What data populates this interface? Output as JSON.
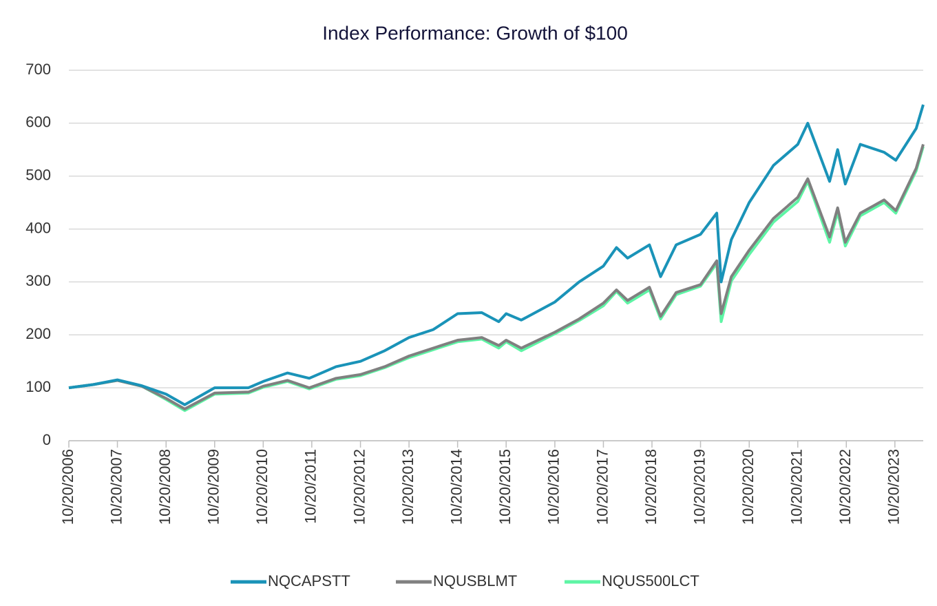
{
  "chart_data": {
    "type": "line",
    "title": "Index Performance: Growth of $100",
    "x": [
      "2006-10-20",
      "2007-04-20",
      "2007-10-20",
      "2008-04-20",
      "2008-10-20",
      "2009-03-09",
      "2009-10-20",
      "2010-07-01",
      "2010-10-20",
      "2011-04-20",
      "2011-10-01",
      "2012-04-20",
      "2012-10-20",
      "2013-04-20",
      "2013-10-20",
      "2014-04-20",
      "2014-10-20",
      "2015-04-20",
      "2015-08-25",
      "2015-10-20",
      "2016-02-11",
      "2016-10-20",
      "2017-04-20",
      "2017-10-20",
      "2018-01-26",
      "2018-04-20",
      "2018-10-01",
      "2018-12-24",
      "2019-04-20",
      "2019-10-20",
      "2020-02-19",
      "2020-03-23",
      "2020-06-08",
      "2020-10-20",
      "2021-04-20",
      "2021-10-20",
      "2022-01-03",
      "2022-06-16",
      "2022-08-16",
      "2022-10-12",
      "2023-02-02",
      "2023-07-31",
      "2023-10-27",
      "2024-03-28",
      "2024-05-20"
    ],
    "series": [
      {
        "name": "NQCAPSTT",
        "color": "#1a93b8",
        "values": [
          100,
          106,
          115,
          104,
          88,
          68,
          100,
          100,
          112,
          128,
          118,
          140,
          150,
          170,
          195,
          210,
          240,
          242,
          225,
          240,
          228,
          262,
          300,
          330,
          365,
          345,
          370,
          310,
          370,
          390,
          430,
          300,
          380,
          450,
          520,
          560,
          600,
          490,
          550,
          485,
          560,
          545,
          530,
          590,
          635
        ]
      },
      {
        "name": "NQUSBLMT",
        "color": "#808080",
        "values": [
          100,
          106,
          114,
          103,
          80,
          60,
          90,
          92,
          103,
          114,
          100,
          118,
          125,
          140,
          160,
          175,
          190,
          195,
          180,
          190,
          175,
          205,
          230,
          260,
          285,
          265,
          290,
          235,
          280,
          295,
          340,
          240,
          310,
          360,
          420,
          460,
          495,
          385,
          440,
          375,
          430,
          455,
          435,
          515,
          560
        ]
      },
      {
        "name": "NQUS500LCT",
        "color": "#5ef5a5",
        "values": [
          100,
          106,
          114,
          103,
          78,
          57,
          88,
          90,
          101,
          112,
          98,
          116,
          123,
          138,
          157,
          172,
          187,
          192,
          175,
          187,
          170,
          202,
          227,
          255,
          282,
          260,
          285,
          230,
          276,
          292,
          335,
          225,
          302,
          352,
          413,
          452,
          490,
          375,
          432,
          368,
          425,
          450,
          430,
          510,
          556
        ]
      }
    ],
    "xlim": [
      "2006-10-20",
      "2024-05-20"
    ],
    "xticks": [
      {
        "value": "2006-10-20",
        "label": "10/20/2006"
      },
      {
        "value": "2007-10-20",
        "label": "10/20/2007"
      },
      {
        "value": "2008-10-20",
        "label": "10/20/2008"
      },
      {
        "value": "2009-10-20",
        "label": "10/20/2009"
      },
      {
        "value": "2010-10-20",
        "label": "10/20/2010"
      },
      {
        "value": "2011-10-20",
        "label": "10/20/2011"
      },
      {
        "value": "2012-10-20",
        "label": "10/20/2012"
      },
      {
        "value": "2013-10-20",
        "label": "10/20/2013"
      },
      {
        "value": "2014-10-20",
        "label": "10/20/2014"
      },
      {
        "value": "2015-10-20",
        "label": "10/20/2015"
      },
      {
        "value": "2016-10-20",
        "label": "10/20/2016"
      },
      {
        "value": "2017-10-20",
        "label": "10/20/2017"
      },
      {
        "value": "2018-10-20",
        "label": "10/20/2018"
      },
      {
        "value": "2019-10-20",
        "label": "10/20/2019"
      },
      {
        "value": "2020-10-20",
        "label": "10/20/2020"
      },
      {
        "value": "2021-10-20",
        "label": "10/20/2021"
      },
      {
        "value": "2022-10-20",
        "label": "10/20/2022"
      },
      {
        "value": "2023-10-20",
        "label": "10/20/2023"
      }
    ],
    "ylim": [
      0,
      700
    ],
    "yticks": [
      0,
      100,
      200,
      300,
      400,
      500,
      600,
      700
    ],
    "grid": true,
    "legend": "bottom"
  }
}
